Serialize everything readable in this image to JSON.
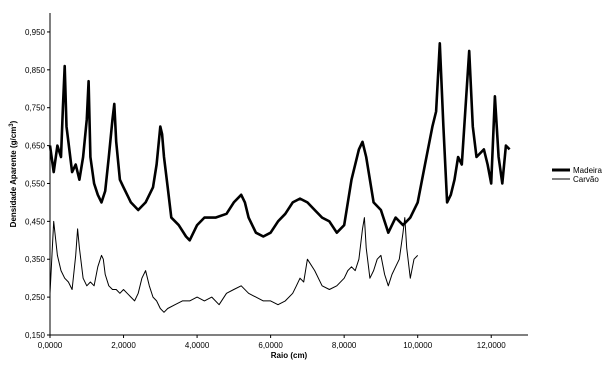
{
  "chart_data": {
    "type": "line",
    "xlabel": "Raio (cm)",
    "ylabel_main": "Densidade Aparente (g/cm",
    "ylabel_sup": "3",
    "ylabel_tail": ")",
    "xlim": [
      0,
      13
    ],
    "ylim": [
      0.15,
      1.0
    ],
    "x_ticks": [
      0,
      2,
      4,
      6,
      8,
      10,
      12
    ],
    "x_tick_labels": [
      "0,0000",
      "2,0000",
      "4,0000",
      "6,0000",
      "8,0000",
      "10,0000",
      "12,0000"
    ],
    "y_ticks": [
      0.15,
      0.25,
      0.35,
      0.45,
      0.55,
      0.65,
      0.75,
      0.85,
      0.95
    ],
    "y_tick_labels": [
      "0,150",
      "0,250",
      "0,350",
      "0,450",
      "0,550",
      "0,650",
      "0,750",
      "0,850",
      "0,950"
    ],
    "grid": false,
    "legend_position": "right",
    "series": [
      {
        "name": "Madeira",
        "color": "#000000",
        "style": "thick",
        "x": [
          0,
          0.1,
          0.2,
          0.3,
          0.35,
          0.4,
          0.45,
          0.5,
          0.6,
          0.7,
          0.8,
          0.9,
          1.0,
          1.05,
          1.1,
          1.2,
          1.3,
          1.4,
          1.5,
          1.6,
          1.7,
          1.75,
          1.8,
          1.9,
          2.0,
          2.2,
          2.4,
          2.6,
          2.8,
          2.9,
          3.0,
          3.05,
          3.1,
          3.2,
          3.3,
          3.5,
          3.7,
          3.8,
          4.0,
          4.2,
          4.5,
          4.8,
          5.0,
          5.2,
          5.3,
          5.4,
          5.6,
          5.8,
          6.0,
          6.2,
          6.4,
          6.6,
          6.8,
          7.0,
          7.2,
          7.4,
          7.6,
          7.8,
          8.0,
          8.2,
          8.4,
          8.5,
          8.6,
          8.8,
          9.0,
          9.2,
          9.4,
          9.6,
          9.8,
          10.0,
          10.2,
          10.4,
          10.5,
          10.6,
          10.7,
          10.8,
          10.9,
          11.0,
          11.1,
          11.2,
          11.3,
          11.4,
          11.5,
          11.6,
          11.8,
          11.9,
          12.0,
          12.1,
          12.2,
          12.3,
          12.4,
          12.5
        ],
        "y": [
          0.65,
          0.58,
          0.65,
          0.62,
          0.75,
          0.86,
          0.7,
          0.66,
          0.58,
          0.6,
          0.56,
          0.62,
          0.72,
          0.82,
          0.62,
          0.55,
          0.52,
          0.5,
          0.53,
          0.62,
          0.72,
          0.76,
          0.66,
          0.56,
          0.54,
          0.5,
          0.48,
          0.5,
          0.54,
          0.6,
          0.7,
          0.68,
          0.62,
          0.54,
          0.46,
          0.44,
          0.41,
          0.4,
          0.44,
          0.46,
          0.46,
          0.47,
          0.5,
          0.52,
          0.5,
          0.46,
          0.42,
          0.41,
          0.42,
          0.45,
          0.47,
          0.5,
          0.51,
          0.5,
          0.48,
          0.46,
          0.45,
          0.42,
          0.44,
          0.56,
          0.64,
          0.66,
          0.62,
          0.5,
          0.48,
          0.42,
          0.46,
          0.44,
          0.46,
          0.5,
          0.6,
          0.7,
          0.74,
          0.92,
          0.7,
          0.5,
          0.52,
          0.56,
          0.62,
          0.6,
          0.75,
          0.9,
          0.7,
          0.62,
          0.64,
          0.6,
          0.55,
          0.78,
          0.62,
          0.55,
          0.65,
          0.64
        ]
      },
      {
        "name": "Carvão",
        "color": "#000000",
        "style": "thin",
        "x": [
          0,
          0.1,
          0.2,
          0.3,
          0.4,
          0.5,
          0.6,
          0.7,
          0.75,
          0.8,
          0.9,
          1.0,
          1.1,
          1.2,
          1.3,
          1.4,
          1.45,
          1.5,
          1.6,
          1.7,
          1.8,
          1.9,
          2.0,
          2.1,
          2.2,
          2.3,
          2.4,
          2.5,
          2.6,
          2.7,
          2.8,
          2.9,
          3.0,
          3.1,
          3.2,
          3.4,
          3.6,
          3.8,
          4.0,
          4.2,
          4.4,
          4.6,
          4.8,
          5.0,
          5.2,
          5.4,
          5.6,
          5.8,
          6.0,
          6.2,
          6.4,
          6.6,
          6.7,
          6.8,
          6.9,
          7.0,
          7.2,
          7.4,
          7.6,
          7.8,
          8.0,
          8.1,
          8.2,
          8.3,
          8.4,
          8.5,
          8.55,
          8.6,
          8.7,
          8.8,
          8.9,
          9.0,
          9.1,
          9.2,
          9.3,
          9.4,
          9.5,
          9.6,
          9.65,
          9.7,
          9.8,
          9.9,
          10.0
        ],
        "y": [
          0.26,
          0.45,
          0.36,
          0.32,
          0.3,
          0.29,
          0.27,
          0.36,
          0.43,
          0.38,
          0.3,
          0.28,
          0.29,
          0.28,
          0.33,
          0.36,
          0.35,
          0.31,
          0.28,
          0.27,
          0.27,
          0.26,
          0.27,
          0.26,
          0.25,
          0.24,
          0.26,
          0.3,
          0.32,
          0.28,
          0.25,
          0.24,
          0.22,
          0.21,
          0.22,
          0.23,
          0.24,
          0.24,
          0.25,
          0.24,
          0.25,
          0.23,
          0.26,
          0.27,
          0.28,
          0.26,
          0.25,
          0.24,
          0.24,
          0.23,
          0.24,
          0.26,
          0.28,
          0.3,
          0.29,
          0.35,
          0.32,
          0.28,
          0.27,
          0.28,
          0.3,
          0.32,
          0.33,
          0.32,
          0.35,
          0.43,
          0.46,
          0.38,
          0.3,
          0.32,
          0.35,
          0.36,
          0.31,
          0.28,
          0.31,
          0.33,
          0.35,
          0.42,
          0.46,
          0.38,
          0.3,
          0.35,
          0.36
        ]
      }
    ]
  }
}
